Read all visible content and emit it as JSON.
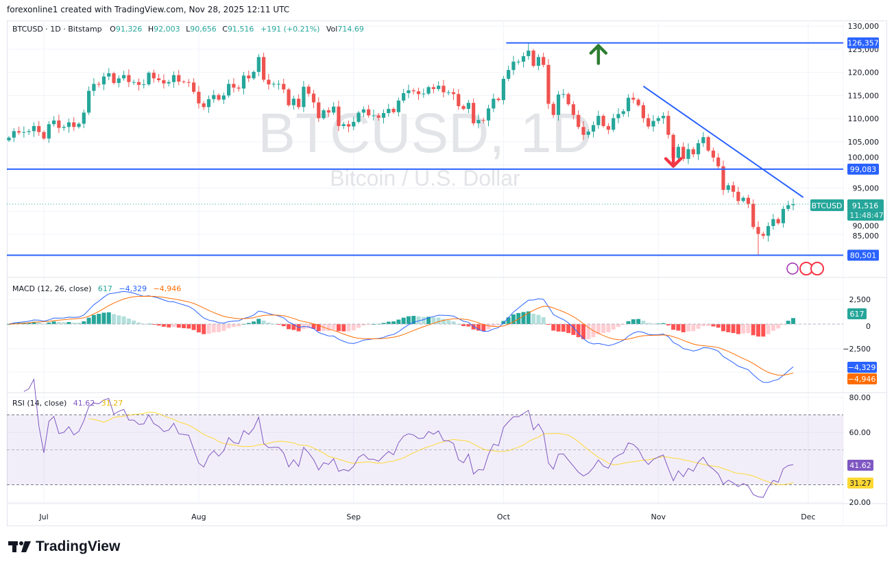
{
  "credit": "forexonline1 created with TradingView.com, Nov 28, 2025 12:11 UTC",
  "legend": {
    "symbol": "BTCUSD · 1D · Bitstamp",
    "o_label": "O",
    "o": "91,326",
    "h_label": "H",
    "h": "92,003",
    "l_label": "L",
    "l": "90,656",
    "c_label": "C",
    "c": "91,516",
    "change": "+191 (+0.21%)",
    "vol_label": "Vol",
    "vol": "714.69"
  },
  "watermark": {
    "title": "BTCUSD, 1D",
    "subtitle": "Bitcoin / U.S. Dollar"
  },
  "brand": "TradingView",
  "colors": {
    "up": "#26a69a",
    "down": "#ef5350",
    "lines": "#2962ff",
    "macd": "#2962ff",
    "signal": "#ff6d00",
    "rsi": "#7e57c2",
    "rsi_ma": "#fdd835",
    "arrow_up": "#2e7d32",
    "arrow_down": "#f23645"
  },
  "chart_data": [
    {
      "type": "candlestick",
      "title": "BTCUSD · 1D · Bitstamp",
      "start_date": "2025-06-24",
      "end_date": "2025-11-28",
      "closes": [
        105.9,
        107.3,
        107.0,
        107.1,
        107.3,
        108.4,
        107.1,
        105.7,
        108.8,
        109.6,
        108.0,
        108.2,
        109.2,
        108.2,
        108.9,
        111.3,
        116.0,
        117.5,
        117.4,
        119.1,
        119.8,
        117.7,
        118.7,
        119.4,
        117.9,
        117.9,
        117.3,
        117.4,
        119.9,
        118.7,
        118.3,
        117.6,
        117.9,
        119.4,
        118.0,
        117.9,
        117.8,
        115.8,
        113.3,
        112.5,
        114.2,
        115.1,
        114.1,
        115.0,
        117.5,
        116.7,
        116.5,
        119.3,
        118.7,
        120.1,
        123.3,
        118.4,
        117.4,
        117.5,
        117.5,
        116.3,
        112.9,
        114.3,
        112.5,
        116.9,
        115.4,
        113.5,
        110.1,
        111.8,
        111.3,
        112.6,
        108.4,
        108.8,
        108.3,
        109.3,
        111.3,
        112.0,
        110.7,
        110.7,
        110.2,
        111.2,
        112.1,
        111.4,
        113.9,
        115.5,
        116.1,
        115.9,
        115.3,
        115.4,
        116.8,
        116.4,
        117.1,
        115.7,
        115.7,
        115.3,
        112.7,
        112.1,
        113.4,
        109.0,
        109.7,
        109.6,
        112.2,
        114.3,
        114.0,
        118.6,
        120.5,
        122.3,
        122.3,
        123.5,
        124.7,
        121.4,
        123.3,
        121.6,
        113.2,
        110.8,
        115.2,
        115.3,
        113.1,
        110.8,
        108.2,
        106.5,
        107.2,
        108.6,
        110.6,
        108.4,
        107.6,
        110.1,
        111.0,
        111.6,
        114.5,
        114.1,
        112.9,
        110.1,
        108.3,
        109.5,
        110.1,
        110.6,
        106.5,
        101.5,
        103.9,
        101.3,
        103.4,
        102.3,
        104.7,
        106.0,
        103.1,
        101.6,
        99.7,
        94.6,
        95.6,
        94.2,
        92.2,
        92.9,
        91.6,
        86.6,
        85.1,
        84.7,
        86.8,
        88.3,
        87.4,
        90.5,
        91.3,
        91.516
      ],
      "close_unit": "thousand USD",
      "extremes": {
        "high": {
          "date": "2025-10-06",
          "value": 126357
        },
        "low": {
          "date": "2025-11-21",
          "value": 80501
        }
      },
      "y_ticks": [
        "130,000",
        "125,000",
        "120,000",
        "115,000",
        "110,000",
        "105,000",
        "100,000",
        "95,000",
        "90,000",
        "85,000"
      ],
      "y_tick_values": [
        130000,
        125000,
        120000,
        115000,
        110000,
        105000,
        100000,
        95000,
        90000,
        85000
      ],
      "x_ticks": [
        "Jul",
        "Aug",
        "Sep",
        "Oct",
        "Nov",
        "Dec"
      ],
      "horizontal_lines": [
        {
          "value": 126357,
          "label": "126,357"
        },
        {
          "value": 99083,
          "label": "99,083"
        },
        {
          "value": 80501,
          "label": "80,501"
        }
      ],
      "trendline": {
        "from": {
          "date": "2025-10-29",
          "value": 117000
        },
        "to": {
          "date": "2025-11-30",
          "value": 93000
        }
      },
      "arrows": [
        {
          "direction": "up",
          "date": "2025-10-20",
          "value": 124000
        },
        {
          "direction": "down",
          "date": "2025-11-04",
          "value": 101500
        }
      ],
      "last_price": {
        "symbol": "BTCUSD",
        "price": "91,516",
        "countdown": "11:48:47"
      }
    },
    {
      "type": "macd",
      "title": "MACD (12, 26, close)",
      "hist": "617",
      "macd": "−4,329",
      "signal": "−4,946",
      "y_ticks": [
        "2,500",
        "0",
        "−2,500"
      ],
      "y_tick_values": [
        2500,
        0,
        -2500
      ]
    },
    {
      "type": "rsi",
      "title": "RSI (14, close)",
      "rsi": "41.62",
      "rsi_ma": "31.27",
      "y_ticks": [
        "80.00",
        "60.00",
        "20.00"
      ],
      "y_tick_values": [
        80,
        60,
        20
      ],
      "bands": [
        70,
        50,
        30
      ]
    }
  ]
}
